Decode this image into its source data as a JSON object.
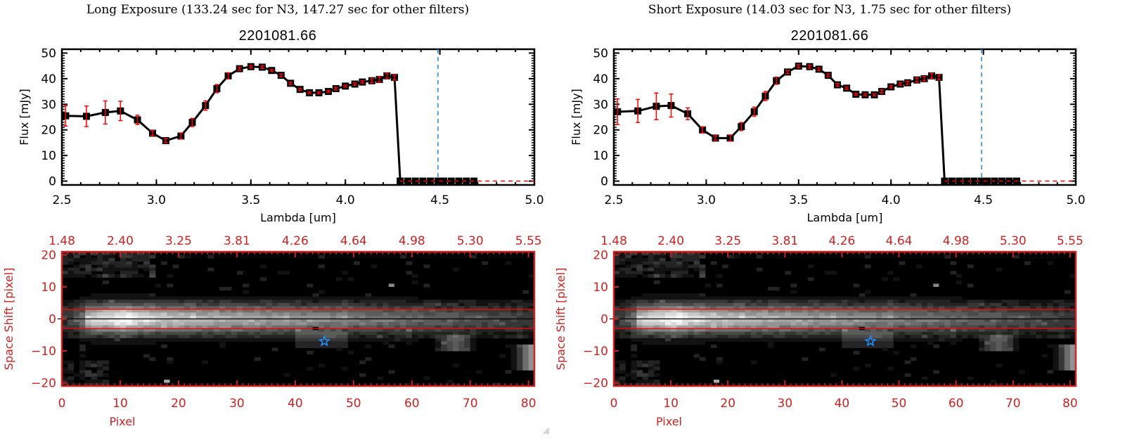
{
  "panels": [
    {
      "id": "left",
      "exposure_title": "Long Exposure (133.24 sec for N3, 147.27 sec for other filters)",
      "object_id": "2201081.66"
    },
    {
      "id": "right",
      "exposure_title": "Short Exposure (14.03 sec for N3, 1.75 sec for other filters)",
      "object_id": "2201081.66"
    }
  ],
  "colors": {
    "spectrum_line": "#000000",
    "error_bar": "#ff0000",
    "marker_line_blue": "#1e88e5",
    "zero_line_red": "#ff0000",
    "image_axes": "#cc2222",
    "aperture_lines": "#ff0000",
    "star_marker": "#1e90ff"
  },
  "chart_data": [
    {
      "type": "line",
      "panel": "left",
      "title": "2201081.66",
      "xlabel": "Lambda [um]",
      "ylabel": "Flux [mJy]",
      "xlim": [
        2.5,
        5.0
      ],
      "ylim": [
        -1.5,
        51.5
      ],
      "xticks": [
        "2.5",
        "3.0",
        "3.5",
        "4.0",
        "4.5",
        "5.0"
      ],
      "yticks": [
        "0",
        "10",
        "20",
        "30",
        "40",
        "50"
      ],
      "grid": false,
      "vline_x": 4.49,
      "hline_y": 0,
      "series": [
        {
          "name": "flux",
          "x": [
            2.52,
            2.63,
            2.73,
            2.81,
            2.9,
            2.98,
            3.05,
            3.13,
            3.19,
            3.26,
            3.32,
            3.38,
            3.44,
            3.5,
            3.56,
            3.61,
            3.66,
            3.71,
            3.76,
            3.81,
            3.86,
            3.91,
            3.95,
            4.0,
            4.05,
            4.09,
            4.14,
            4.18,
            4.22,
            4.26,
            4.29,
            4.33,
            4.37,
            4.41,
            4.45,
            4.49,
            4.52,
            4.56,
            4.6,
            4.64,
            4.68
          ],
          "y": [
            25.5,
            25.3,
            26.8,
            27.4,
            23.9,
            18.7,
            15.8,
            17.6,
            22.9,
            29.5,
            36.1,
            41.1,
            43.9,
            44.7,
            44.5,
            43.2,
            41.3,
            38.2,
            35.8,
            34.5,
            34.5,
            35.0,
            36.1,
            37.1,
            37.9,
            38.7,
            39.2,
            39.7,
            41.1,
            40.5,
            0,
            0,
            0,
            0,
            0,
            0,
            0,
            0,
            0,
            0,
            0
          ],
          "err": [
            4.0,
            4.0,
            4.5,
            3.8,
            1.8,
            1.0,
            0.8,
            1.2,
            1.6,
            1.8,
            1.6,
            1.2,
            0.6,
            0.5,
            0.5,
            0.4,
            0.5,
            0.5,
            0.4,
            0.4,
            0.4,
            0.4,
            0.5,
            0.4,
            0.5,
            0.5,
            0.8,
            1.0,
            1.0,
            1.0,
            0,
            0,
            0,
            0,
            0,
            0,
            0,
            0,
            0,
            0,
            0
          ]
        }
      ]
    },
    {
      "type": "line",
      "panel": "right",
      "title": "2201081.66",
      "xlabel": "Lambda [um]",
      "ylabel": "Flux [mJy]",
      "xlim": [
        2.5,
        5.0
      ],
      "ylim": [
        -1.5,
        51.5
      ],
      "xticks": [
        "2.5",
        "3.0",
        "3.5",
        "4.0",
        "4.5",
        "5.0"
      ],
      "yticks": [
        "0",
        "10",
        "20",
        "30",
        "40",
        "50"
      ],
      "grid": false,
      "vline_x": 4.49,
      "hline_y": 0,
      "series": [
        {
          "name": "flux",
          "x": [
            2.52,
            2.63,
            2.73,
            2.81,
            2.9,
            2.98,
            3.05,
            3.13,
            3.19,
            3.26,
            3.32,
            3.38,
            3.44,
            3.5,
            3.56,
            3.61,
            3.66,
            3.71,
            3.76,
            3.81,
            3.86,
            3.91,
            3.95,
            4.0,
            4.05,
            4.09,
            4.14,
            4.18,
            4.22,
            4.26,
            4.29,
            4.33,
            4.37,
            4.41,
            4.45,
            4.49,
            4.52,
            4.56,
            4.6,
            4.64,
            4.68
          ],
          "y": [
            27.1,
            27.4,
            29.2,
            29.5,
            26.3,
            20.0,
            16.8,
            16.8,
            21.3,
            27.1,
            33.2,
            39.2,
            42.6,
            44.9,
            44.7,
            43.7,
            41.3,
            37.6,
            36.3,
            33.9,
            33.7,
            33.7,
            35.0,
            36.8,
            37.9,
            38.4,
            39.5,
            40.0,
            41.1,
            40.5,
            0,
            0,
            0,
            0,
            0,
            0,
            0,
            0,
            0,
            0,
            0
          ],
          "err": [
            5.0,
            4.5,
            5.2,
            4.5,
            2.3,
            1.2,
            0.9,
            1.2,
            1.6,
            1.8,
            1.8,
            1.4,
            0.6,
            0.6,
            0.6,
            0.5,
            0.5,
            0.5,
            0.5,
            0.4,
            0.4,
            0.4,
            0.6,
            0.5,
            0.5,
            0.6,
            0.8,
            0.9,
            1.0,
            1.0,
            0,
            0,
            0,
            0,
            0,
            0,
            0,
            0,
            0,
            0,
            0
          ]
        }
      ]
    },
    {
      "type": "heatmap",
      "panel": "left",
      "xlabel": "Pixel",
      "ylabel": "Space Shift [pixel]",
      "xlim": [
        0,
        81
      ],
      "ylim": [
        -21,
        21
      ],
      "xticks": [
        "0",
        "10",
        "20",
        "30",
        "40",
        "50",
        "60",
        "70",
        "80"
      ],
      "yticks": [
        "-20",
        "-10",
        "0",
        "10",
        "20"
      ],
      "top_axis_label_values": [
        "1.48",
        "2.40",
        "3.25",
        "3.81",
        "4.26",
        "4.64",
        "4.98",
        "5.30",
        "5.55"
      ],
      "aperture_lines_y": [
        3,
        -3
      ],
      "center_line_y": 0,
      "star_marker": {
        "x": 45,
        "y": -7
      },
      "masked_pixel": {
        "x": 43,
        "y": -3
      },
      "colormap": "grayscale"
    },
    {
      "type": "heatmap",
      "panel": "right",
      "xlabel": "Pixel",
      "ylabel": "Space Shift [pixel]",
      "xlim": [
        0,
        81
      ],
      "ylim": [
        -21,
        21
      ],
      "xticks": [
        "0",
        "10",
        "20",
        "30",
        "40",
        "50",
        "60",
        "70",
        "80"
      ],
      "yticks": [
        "-20",
        "-10",
        "0",
        "10",
        "20"
      ],
      "top_axis_label_values": [
        "1.48",
        "2.40",
        "3.25",
        "3.81",
        "4.26",
        "4.64",
        "4.98",
        "5.30",
        "5.55"
      ],
      "aperture_lines_y": [
        3,
        -3
      ],
      "center_line_y": 0,
      "star_marker": {
        "x": 45,
        "y": -7
      },
      "masked_pixel": {
        "x": 43,
        "y": -3
      },
      "colormap": "grayscale"
    }
  ]
}
